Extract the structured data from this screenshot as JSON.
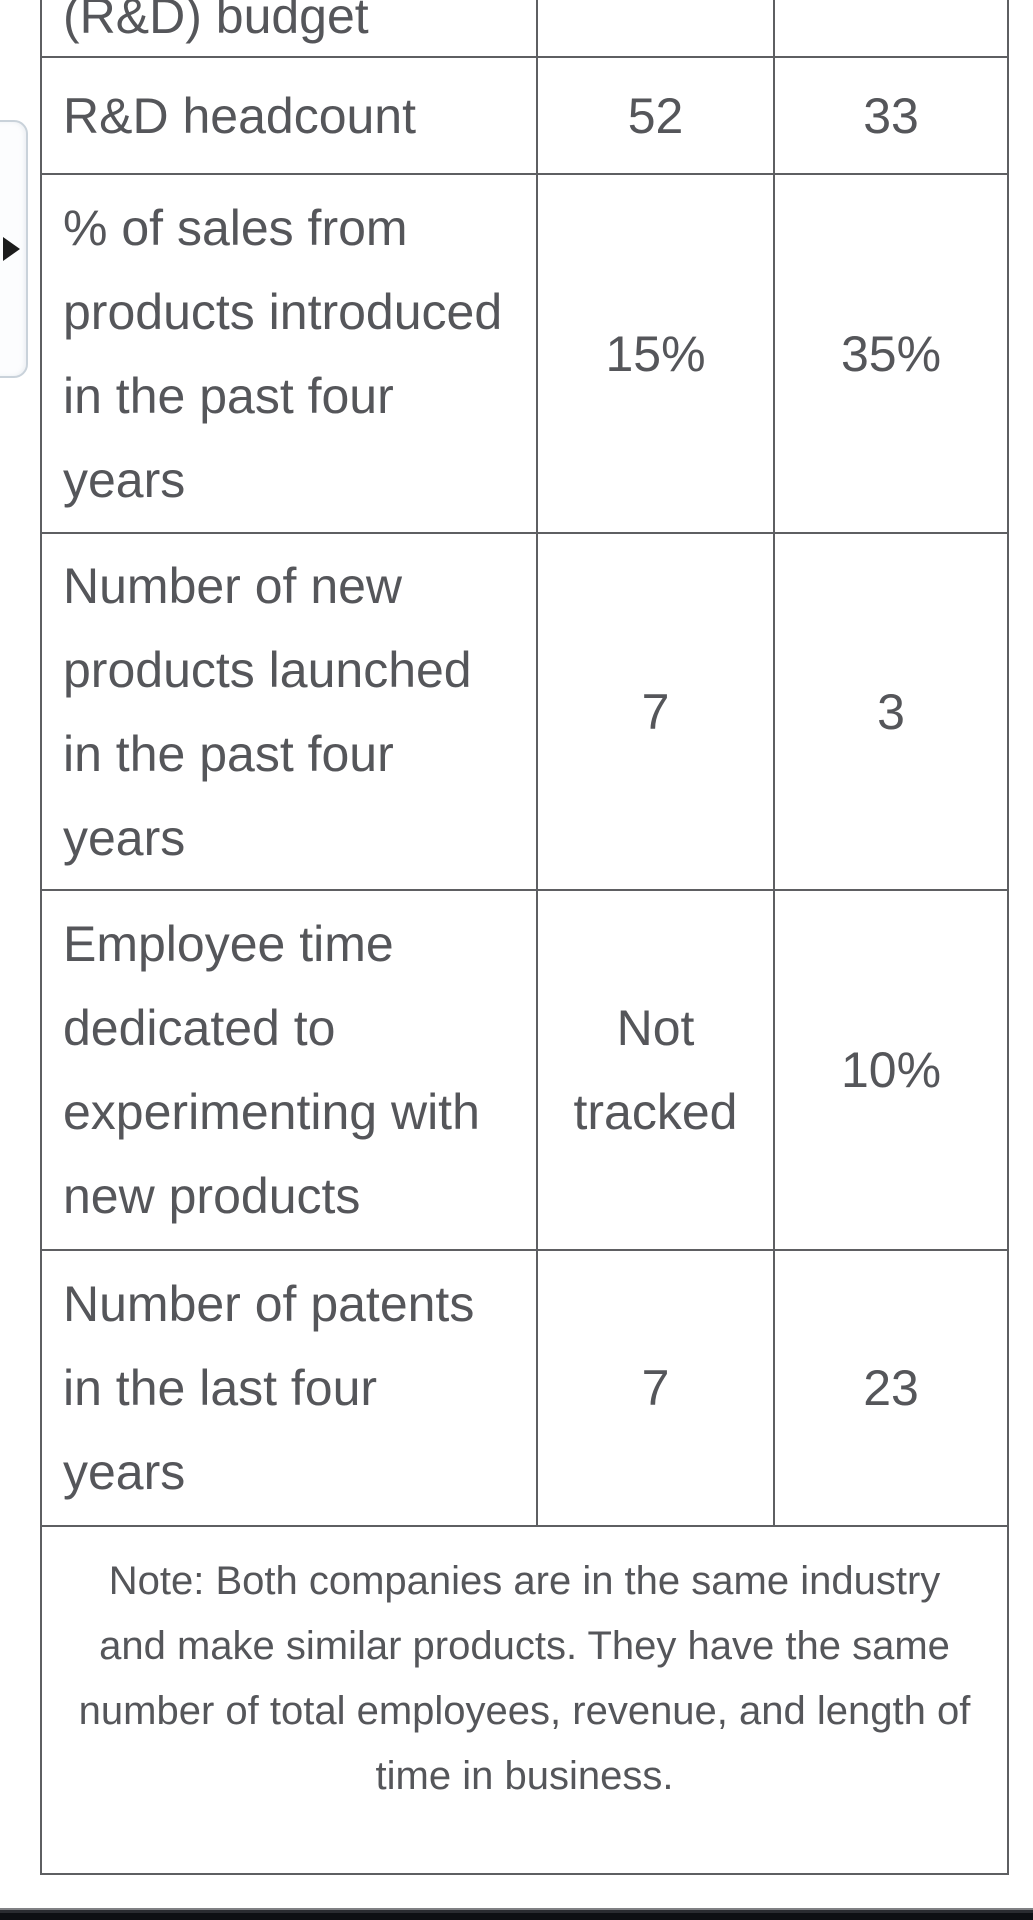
{
  "flyout": {
    "arrow_icon": "right-pointing-triangle"
  },
  "table": {
    "rows": [
      {
        "label": "(R&D) budget",
        "values": [
          "",
          ""
        ]
      },
      {
        "label": "R&D headcount",
        "values": [
          "52",
          "33"
        ]
      },
      {
        "label": "% of sales from products introduced in the past four years",
        "values": [
          "15%",
          "35%"
        ]
      },
      {
        "label": "Number of new products launched in the past four years",
        "values": [
          "7",
          "3"
        ]
      },
      {
        "label": "Employee time dedicated to experimenting with new products",
        "values": [
          "Not tracked",
          "10%"
        ]
      },
      {
        "label": "Number of patents in the last four years",
        "values": [
          "7",
          "23"
        ]
      }
    ],
    "note": "Note: Both companies are in the same industry and make similar products. They have the same number of total employees, revenue, and length of time in business."
  },
  "colors": {
    "text": "#55565a",
    "border": "#5e5f62",
    "flyout_border": "#c9d2da",
    "flyout_background": "#fcfdfe",
    "flyout_arrow": "#1c1c1c",
    "bottom_bar": "#0e0f13"
  }
}
